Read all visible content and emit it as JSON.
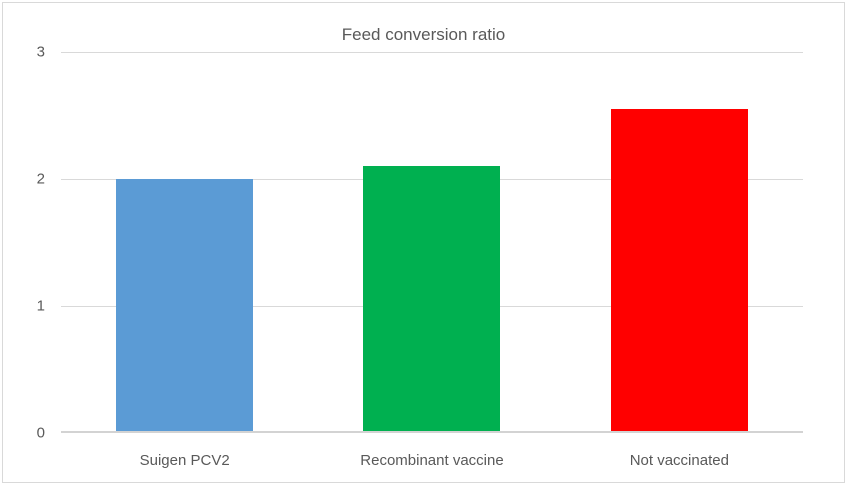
{
  "chart_data": {
    "type": "bar",
    "title": "Feed conversion ratio",
    "categories": [
      "Suigen PCV2",
      "Recombinant vaccine",
      "Not vaccinated"
    ],
    "values": [
      2.0,
      2.1,
      2.55
    ],
    "colors": [
      "#5B9BD5",
      "#00B050",
      "#FF0000"
    ],
    "ylim": [
      0,
      3
    ],
    "yticks": [
      0,
      1,
      2,
      3
    ],
    "xlabel": "",
    "ylabel": "",
    "grid": true,
    "legend_position": "none",
    "title_color": "#595959",
    "tick_label_color": "#595959",
    "gridline_color": "#D9D9D9",
    "axis_line_color": "#D3D3D3",
    "frame_border_color": "#D9D9D9",
    "background_color": "#FFFFFF"
  }
}
